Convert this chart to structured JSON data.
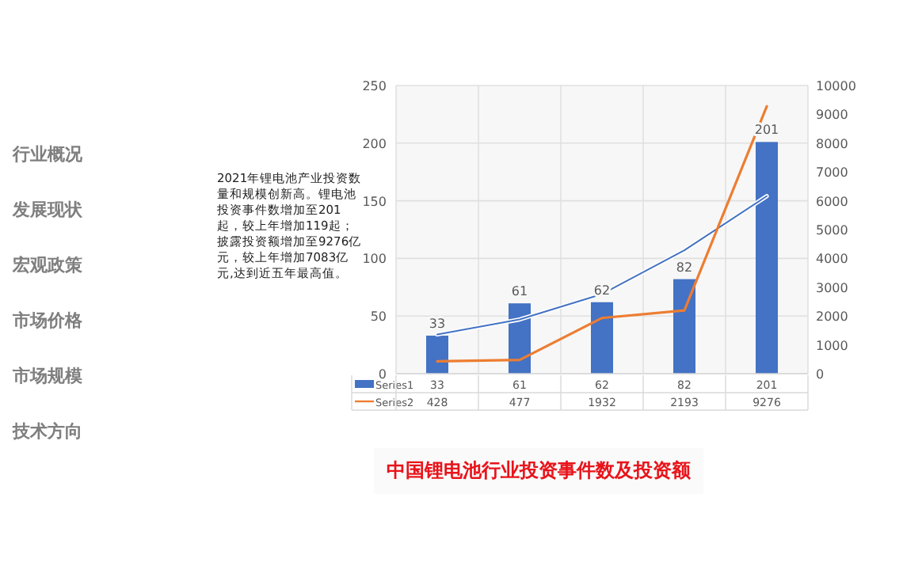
{
  "chart_data": {
    "type": "bar",
    "title": "中国锂电池行业投资事件数及投资额",
    "categories": [
      null,
      null,
      null,
      null,
      null
    ],
    "series": [
      {
        "name": "Series1",
        "color": "#4472c4",
        "values": [
          33,
          61,
          62,
          82,
          201
        ],
        "value_labels": [
          "33",
          "61",
          "62",
          "82",
          "201"
        ]
      },
      {
        "type": "line",
        "color": "#4472c4",
        "values": [
          34,
          47,
          69,
          107,
          154
        ]
      },
      {
        "name": "Series2",
        "type": "line",
        "axis": "y2",
        "color": "#ed7d31",
        "values": [
          428,
          477,
          1932,
          2193,
          9276
        ],
        "value_labels": [
          "428",
          "477",
          "1932",
          "2193",
          "9276"
        ]
      }
    ],
    "ylim": [
      0,
      250
    ],
    "yticks": [
      0,
      50,
      100,
      150,
      200,
      250
    ],
    "y2lim": [
      0,
      10000
    ],
    "y2ticks": [
      0,
      1000,
      2000,
      3000,
      4000,
      5000,
      6000,
      7000,
      8000,
      9000,
      10000
    ],
    "grid": true,
    "legend": "bottom",
    "marker": "none",
    "line_style": "solid",
    "annotations": [
      "行业概况",
      "发展现状",
      "宏观政策",
      "市场价格",
      "市场规模",
      "技术方向",
      "2021年锂电池产业投资数量和规模创新高。锂电池投资事件数增加至201起，较上年增加119起；披露投资额增加至9276亿元，较上年增加7083亿元,达到近五年最高值。"
    ]
  }
}
